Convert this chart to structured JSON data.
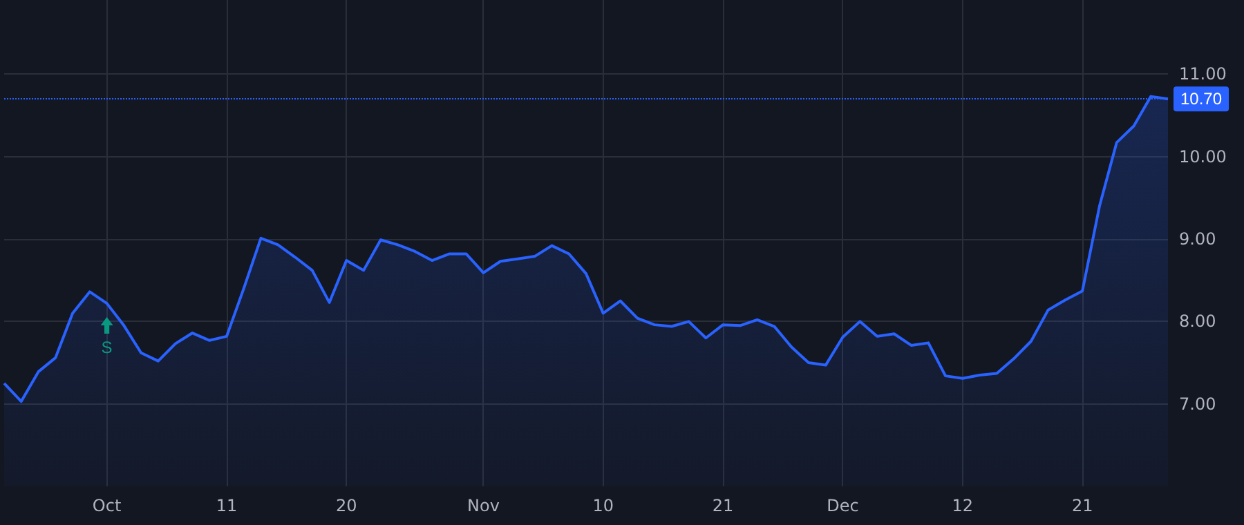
{
  "chart_data": {
    "type": "area",
    "categories": [
      null,
      null,
      null,
      null,
      null,
      null,
      "Oct",
      null,
      null,
      null,
      null,
      null,
      null,
      "11",
      null,
      null,
      null,
      null,
      null,
      null,
      "20",
      null,
      null,
      null,
      null,
      null,
      null,
      null,
      "Nov",
      null,
      null,
      null,
      null,
      null,
      null,
      "10",
      null,
      null,
      null,
      null,
      null,
      null,
      "21",
      null,
      null,
      null,
      null,
      null,
      null,
      "Dec",
      null,
      null,
      null,
      null,
      null,
      null,
      "12",
      null,
      null,
      null,
      null,
      null,
      null,
      "21",
      null,
      null,
      null,
      null,
      null
    ],
    "series": [
      {
        "color": "#2962ff",
        "values": [
          7.25,
          7.03,
          7.39,
          7.56,
          8.1,
          8.36,
          8.22,
          7.95,
          7.62,
          7.52,
          7.73,
          7.86,
          7.77,
          7.82,
          8.4,
          9.01,
          8.93,
          8.78,
          8.62,
          8.23,
          8.74,
          8.62,
          8.99,
          8.93,
          8.85,
          8.74,
          8.82,
          8.82,
          8.59,
          8.73,
          8.76,
          8.79,
          8.92,
          8.82,
          8.58,
          8.1,
          8.25,
          8.04,
          7.96,
          7.94,
          8.0,
          7.8,
          7.96,
          7.95,
          8.02,
          7.94,
          7.69,
          7.5,
          7.47,
          7.81,
          8.0,
          7.82,
          7.85,
          7.71,
          7.74,
          7.34,
          7.31,
          7.35,
          7.37,
          7.55,
          7.76,
          8.14,
          8.26,
          8.37,
          9.4,
          10.17,
          10.37,
          10.73,
          10.7
        ]
      }
    ],
    "ylim": [
      6,
      11.9
    ],
    "yticks": [
      {
        "value": 7,
        "label": "7.00"
      },
      {
        "value": 8,
        "label": "8.00"
      },
      {
        "value": 9,
        "label": "9.00"
      },
      {
        "value": 10,
        "label": "10.00"
      },
      {
        "value": 11,
        "label": "11.00"
      }
    ],
    "grid": true,
    "ref_lines": [
      {
        "axis": "y",
        "value": 10.7,
        "label": "10.70",
        "color": "#2962ff",
        "line_style": "dotted"
      }
    ],
    "annotations": [
      {
        "text": "S",
        "x": "Oct",
        "y": 8.22
      }
    ]
  }
}
